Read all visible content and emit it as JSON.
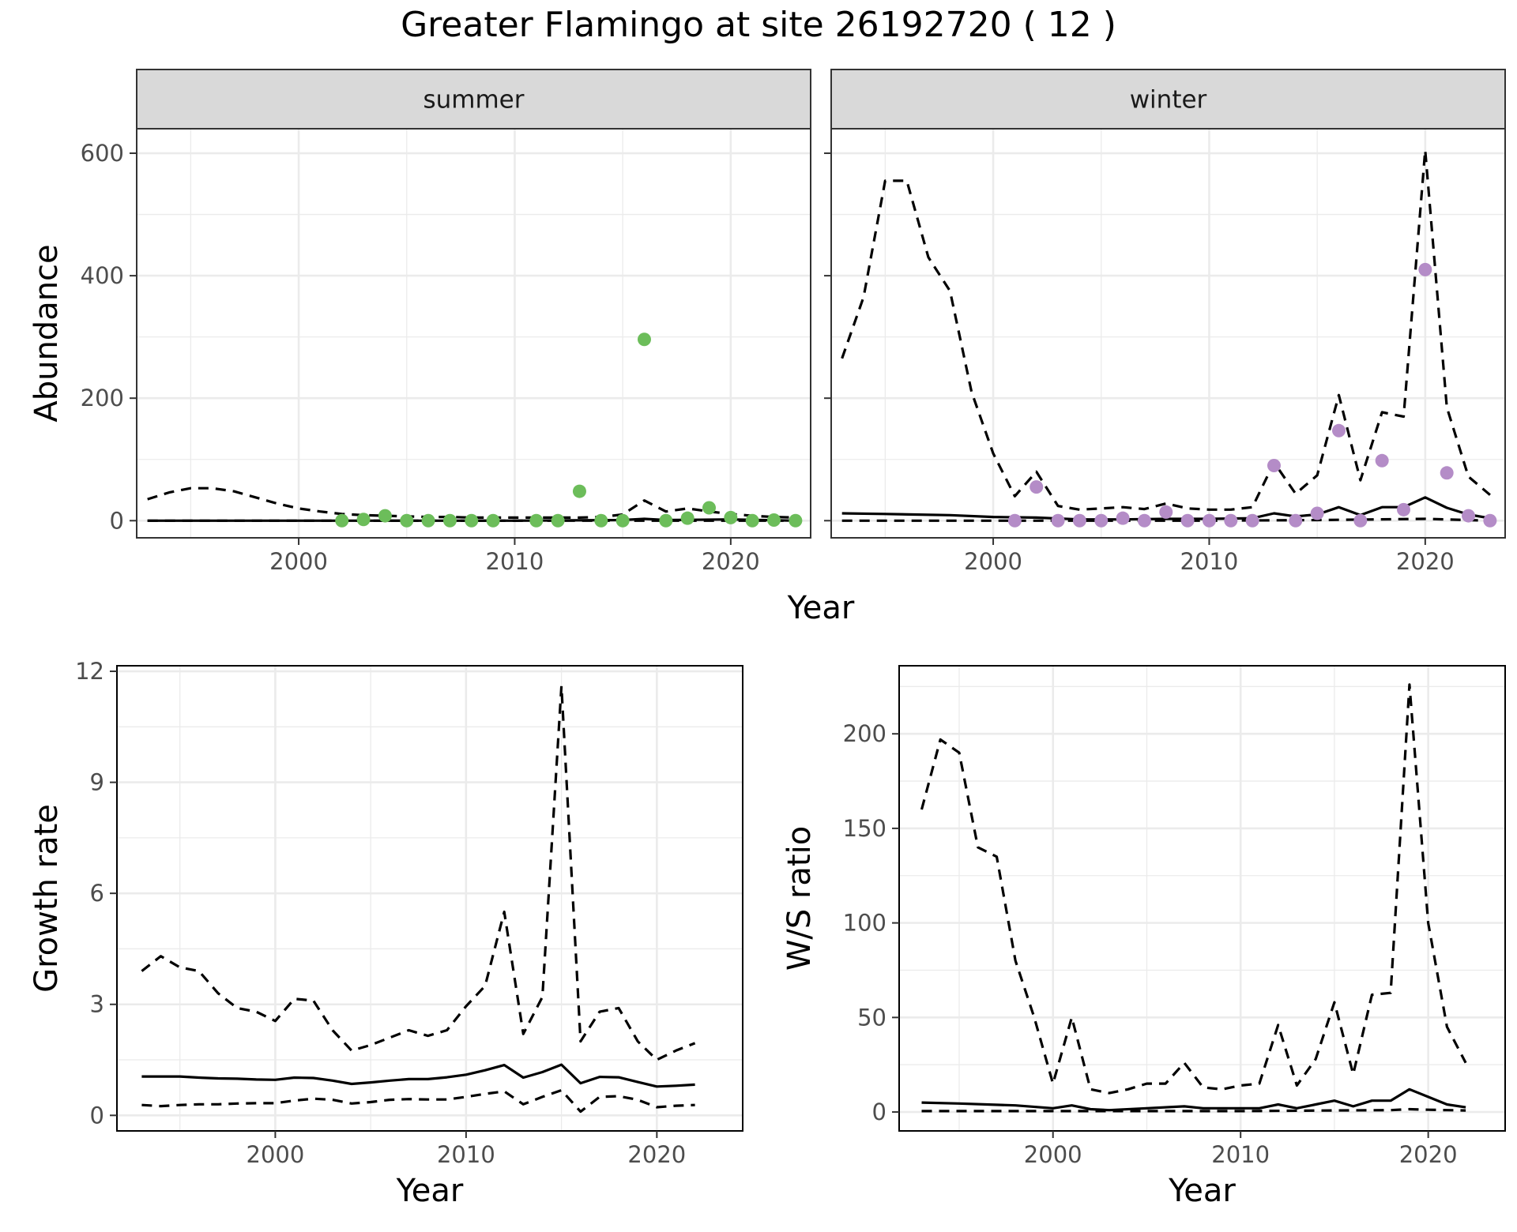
{
  "title": "Greater Flamingo at site 26192720 ( 12 )",
  "colors": {
    "summer_points": "#6cbd5a",
    "winter_points": "#b48cc7",
    "lines": "#000000",
    "strip_fill": "#d9d9d9",
    "grid": "#ebebeb",
    "panel_border": "#333333"
  },
  "chart_data": [
    {
      "type": "line",
      "panel": "summer",
      "strip_label": "summer",
      "ylabel": "Abundance",
      "xlabel": "Year",
      "xlim": [
        1992.5,
        2023.7
      ],
      "ylim": [
        -28,
        640
      ],
      "x_ticks": [
        2000,
        2010,
        2020
      ],
      "y_ticks": [
        0,
        200,
        400,
        600
      ],
      "grid": true,
      "points": {
        "x": [
          2002,
          2003,
          2004,
          2005,
          2006,
          2007,
          2008,
          2009,
          2011,
          2012,
          2013,
          2014,
          2015,
          2016,
          2017,
          2018,
          2019,
          2020,
          2021,
          2022,
          2023
        ],
        "y": [
          0,
          2,
          8,
          0,
          0,
          0,
          0,
          0,
          0,
          0,
          48,
          0,
          0,
          296,
          0,
          4,
          21,
          5,
          0,
          1,
          0
        ]
      },
      "estimate": {
        "x": [
          1993,
          1995,
          2000,
          2005,
          2010,
          2015,
          2016,
          2017,
          2020,
          2023
        ],
        "y": [
          0,
          0,
          0,
          0,
          0,
          1,
          3,
          1,
          2,
          0
        ]
      },
      "upper": {
        "x": [
          1993,
          1994,
          1995,
          1996,
          1997,
          1998,
          1999,
          2000,
          2001,
          2002,
          2003,
          2004,
          2005,
          2006,
          2007,
          2008,
          2009,
          2010,
          2011,
          2012,
          2013,
          2014,
          2015,
          2016,
          2017,
          2018,
          2019,
          2020,
          2021,
          2022,
          2023
        ],
        "y": [
          35,
          46,
          53,
          53,
          48,
          38,
          28,
          20,
          15,
          11,
          9,
          8,
          7,
          6,
          6,
          5,
          5,
          5,
          5,
          5,
          5,
          6,
          10,
          33,
          15,
          20,
          15,
          11,
          8,
          6,
          5
        ]
      },
      "lower": {
        "x": [
          1993,
          2023
        ],
        "y": [
          0,
          0
        ]
      }
    },
    {
      "type": "line",
      "panel": "winter",
      "strip_label": "winter",
      "xlabel": "Year",
      "xlim": [
        1992.5,
        2023.7
      ],
      "ylim": [
        -28,
        640
      ],
      "x_ticks": [
        2000,
        2010,
        2020
      ],
      "y_ticks": [
        0,
        200,
        400,
        600
      ],
      "grid": true,
      "points": {
        "x": [
          2001,
          2002,
          2003,
          2004,
          2005,
          2006,
          2007,
          2008,
          2009,
          2010,
          2011,
          2012,
          2013,
          2014,
          2015,
          2016,
          2017,
          2018,
          2019,
          2020,
          2021,
          2022,
          2023
        ],
        "y": [
          0,
          55,
          0,
          0,
          0,
          4,
          0,
          14,
          0,
          0,
          0,
          0,
          90,
          0,
          12,
          147,
          0,
          98,
          18,
          410,
          78,
          8,
          0
        ]
      },
      "estimate": {
        "x": [
          1993,
          1995,
          1998,
          2000,
          2002,
          2004,
          2006,
          2008,
          2010,
          2012,
          2013,
          2014,
          2015,
          2016,
          2017,
          2018,
          2019,
          2020,
          2021,
          2022,
          2023
        ],
        "y": [
          12,
          11,
          9,
          6,
          5,
          2,
          2,
          3,
          3,
          4,
          12,
          7,
          10,
          22,
          9,
          22,
          22,
          38,
          21,
          10,
          4
        ]
      },
      "upper": {
        "x": [
          1993,
          1994,
          1995,
          1996,
          1997,
          1998,
          1999,
          2000,
          2001,
          2002,
          2003,
          2004,
          2005,
          2006,
          2007,
          2008,
          2009,
          2010,
          2011,
          2012,
          2013,
          2014,
          2015,
          2016,
          2017,
          2018,
          2019,
          2020,
          2021,
          2022,
          2023
        ],
        "y": [
          265,
          365,
          555,
          555,
          430,
          375,
          210,
          110,
          40,
          80,
          24,
          18,
          20,
          22,
          19,
          28,
          20,
          18,
          18,
          22,
          95,
          44,
          74,
          205,
          66,
          177,
          170,
          605,
          185,
          72,
          42
        ]
      },
      "lower": {
        "x": [
          1993,
          2010,
          2015,
          2020,
          2023
        ],
        "y": [
          0,
          0,
          1,
          3,
          0
        ]
      }
    },
    {
      "type": "line",
      "panel": "growth",
      "ylabel": "Growth rate",
      "xlabel": "Year",
      "xlim": [
        1991.7,
        2024.5
      ],
      "ylim": [
        -0.42,
        12.15
      ],
      "x_ticks": [
        2000,
        2010,
        2020
      ],
      "y_ticks": [
        0,
        3,
        6,
        9,
        12
      ],
      "grid": true,
      "estimate": {
        "x": [
          1993,
          1994,
          1995,
          1996,
          1997,
          1998,
          1999,
          2000,
          2001,
          2002,
          2003,
          2004,
          2005,
          2006,
          2007,
          2008,
          2009,
          2010,
          2011,
          2012,
          2013,
          2014,
          2015,
          2016,
          2017,
          2018,
          2019,
          2020,
          2021,
          2022
        ],
        "y": [
          1.05,
          1.05,
          1.05,
          1.02,
          1.0,
          0.99,
          0.97,
          0.96,
          1.02,
          1.01,
          0.94,
          0.85,
          0.89,
          0.94,
          0.98,
          0.98,
          1.03,
          1.1,
          1.22,
          1.36,
          1.02,
          1.17,
          1.37,
          0.87,
          1.04,
          1.03,
          0.9,
          0.78,
          0.8,
          0.83
        ]
      },
      "upper": {
        "x": [
          1993,
          1994,
          1995,
          1996,
          1997,
          1998,
          1999,
          2000,
          2001,
          2002,
          2003,
          2004,
          2005,
          2006,
          2007,
          2008,
          2009,
          2010,
          2011,
          2012,
          2013,
          2014,
          2015,
          2016,
          2017,
          2018,
          2019,
          2020,
          2021,
          2022
        ],
        "y": [
          3.9,
          4.3,
          4.0,
          3.9,
          3.3,
          2.9,
          2.8,
          2.55,
          3.15,
          3.1,
          2.3,
          1.75,
          1.9,
          2.1,
          2.3,
          2.15,
          2.3,
          2.95,
          3.5,
          5.5,
          2.2,
          3.2,
          11.6,
          2.0,
          2.8,
          2.9,
          2.0,
          1.5,
          1.75,
          1.95
        ]
      },
      "lower": {
        "x": [
          1993,
          1994,
          1995,
          1996,
          1997,
          1998,
          1999,
          2000,
          2001,
          2002,
          2003,
          2004,
          2005,
          2006,
          2007,
          2008,
          2009,
          2010,
          2011,
          2012,
          2013,
          2014,
          2015,
          2016,
          2017,
          2018,
          2019,
          2020,
          2021,
          2022
        ],
        "y": [
          0.28,
          0.25,
          0.28,
          0.3,
          0.3,
          0.32,
          0.33,
          0.33,
          0.4,
          0.45,
          0.42,
          0.32,
          0.36,
          0.42,
          0.44,
          0.43,
          0.43,
          0.5,
          0.58,
          0.65,
          0.3,
          0.5,
          0.68,
          0.1,
          0.5,
          0.52,
          0.42,
          0.22,
          0.26,
          0.28
        ]
      }
    },
    {
      "type": "line",
      "panel": "ratio",
      "ylabel": "W/S ratio",
      "xlabel": "Year",
      "xlim": [
        1991.8,
        2024.1
      ],
      "ylim": [
        -10,
        236
      ],
      "x_ticks": [
        2000,
        2010,
        2020
      ],
      "y_ticks": [
        0,
        50,
        100,
        150,
        200
      ],
      "grid": true,
      "estimate": {
        "x": [
          1993,
          1995,
          1998,
          2000,
          2001,
          2002,
          2003,
          2005,
          2007,
          2008,
          2010,
          2011,
          2012,
          2013,
          2014,
          2015,
          2016,
          2017,
          2018,
          2019,
          2020,
          2021,
          2022
        ],
        "y": [
          5,
          4.5,
          3.5,
          2,
          3.5,
          1.5,
          1,
          2,
          3,
          2,
          2,
          2,
          4,
          2,
          4,
          6,
          3,
          6,
          6,
          12,
          8,
          4,
          2.5
        ]
      },
      "upper": {
        "x": [
          1993,
          1994,
          1995,
          1996,
          1997,
          1998,
          1999,
          2000,
          2001,
          2002,
          2003,
          2004,
          2005,
          2006,
          2007,
          2008,
          2009,
          2010,
          2011,
          2012,
          2013,
          2014,
          2015,
          2016,
          2017,
          2018,
          2019,
          2020,
          2021,
          2022
        ],
        "y": [
          160,
          197,
          190,
          140,
          135,
          80,
          50,
          15,
          50,
          12,
          10,
          12,
          15,
          15,
          26,
          13,
          12,
          14,
          15,
          46,
          14,
          28,
          58,
          20,
          62,
          63,
          226,
          100,
          45,
          26
        ]
      },
      "lower": {
        "x": [
          1993,
          2000,
          2005,
          2010,
          2015,
          2018,
          2019,
          2020,
          2021,
          2022
        ],
        "y": [
          0.5,
          0.5,
          0.5,
          0.5,
          0.8,
          1,
          1.5,
          1.2,
          1,
          0.8
        ]
      }
    }
  ]
}
